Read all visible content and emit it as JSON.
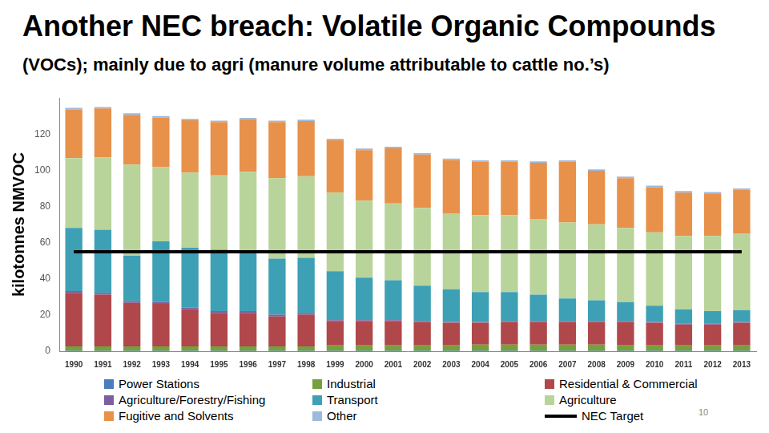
{
  "chart_data": {
    "type": "bar",
    "title": "Another NEC breach: Volatile Organic Compounds",
    "subtitle": "(VOCs); mainly due to agri (manure volume attributable to cattle no.’s)",
    "y_label": "kilotonnes NMVOC",
    "annotations": [
      "10"
    ],
    "categories": [
      "1990",
      "1991",
      "1992",
      "1993",
      "1994",
      "1995",
      "1996",
      "1997",
      "1998",
      "1999",
      "2000",
      "2001",
      "2002",
      "2003",
      "2004",
      "2005",
      "2006",
      "2007",
      "2008",
      "2009",
      "2010",
      "2011",
      "2012",
      "2013"
    ],
    "stacked": true,
    "grid": false,
    "ylim": [
      0,
      140
    ],
    "yticks": [
      0,
      20,
      40,
      60,
      80,
      100,
      120
    ],
    "series": [
      {
        "name": "Power Stations",
        "color": "#4a7ebb",
        "values": [
          0.2,
          0.2,
          0.2,
          0.2,
          0.2,
          0.2,
          0.2,
          0.2,
          0.2,
          0.2,
          0.2,
          0.2,
          0.2,
          0.2,
          0.2,
          0.2,
          0.2,
          0.2,
          0.2,
          0.2,
          0.2,
          0.2,
          0.2,
          0.2
        ]
      },
      {
        "name": "Industrial",
        "color": "#77a03d",
        "values": [
          2.5,
          2.5,
          2.5,
          2.5,
          2.5,
          2.5,
          2.5,
          2.5,
          2.5,
          3,
          3,
          3,
          3,
          3,
          3.5,
          3.5,
          3.5,
          3.5,
          3.5,
          3,
          3,
          3,
          3,
          3
        ]
      },
      {
        "name": "Residential & Commercial",
        "color": "#b0474a",
        "values": [
          29.5,
          28.5,
          24,
          23.5,
          20.5,
          18.5,
          18.5,
          16.5,
          17.5,
          13.5,
          13.5,
          13.5,
          13,
          12.5,
          12,
          12.5,
          12.5,
          12.5,
          12.5,
          13,
          12.5,
          11.5,
          11.5,
          12.5
        ]
      },
      {
        "name": "Agriculture/Forestry/Fishing",
        "color": "#7d5fa0",
        "values": [
          1,
          1,
          1,
          1,
          1,
          1,
          1,
          1,
          1,
          0.5,
          0.5,
          0.5,
          0.5,
          0.5,
          0.5,
          0.5,
          0.5,
          0.5,
          0.5,
          0.5,
          0.5,
          0.5,
          0.5,
          0.5
        ]
      },
      {
        "name": "Transport",
        "color": "#3ea0b5",
        "values": [
          35,
          35,
          25,
          33.5,
          33,
          34,
          33,
          31,
          30.5,
          27,
          23.5,
          22,
          19.5,
          18,
          16.5,
          16,
          14.5,
          12.5,
          11.5,
          10.5,
          9,
          8,
          7,
          6.5
        ]
      },
      {
        "name": "Agriculture",
        "color": "#b9d49a",
        "values": [
          38.5,
          40,
          50.5,
          41,
          41.5,
          41,
          44,
          44.5,
          45,
          43.5,
          42.5,
          42.5,
          43,
          42,
          42.5,
          42.5,
          42,
          42,
          42,
          41,
          40.5,
          40.5,
          41.5,
          42.5
        ]
      },
      {
        "name": "Fugitive and Solvents",
        "color": "#e8914a",
        "values": [
          27,
          27,
          27.5,
          27.5,
          29,
          29.5,
          29,
          31,
          30.5,
          29,
          28,
          30.5,
          29.5,
          29.5,
          29.5,
          29.5,
          31,
          33.5,
          29.5,
          27.5,
          25,
          24,
          23.5,
          24
        ]
      },
      {
        "name": "Other",
        "color": "#9db9dc",
        "values": [
          0.8,
          0.8,
          0.8,
          0.8,
          0.8,
          0.8,
          0.8,
          0.8,
          0.8,
          0.8,
          0.8,
          0.8,
          0.8,
          0.8,
          0.8,
          0.8,
          0.8,
          0.8,
          0.8,
          0.8,
          0.8,
          0.8,
          0.8,
          0.8
        ]
      },
      {
        "name": "NEC Target",
        "color": "#000000",
        "type": "line",
        "values": [
          55,
          55,
          55,
          55,
          55,
          55,
          55,
          55,
          55,
          55,
          55,
          55,
          55,
          55,
          55,
          55,
          55,
          55,
          55,
          55,
          55,
          55,
          55,
          55
        ]
      }
    ]
  }
}
